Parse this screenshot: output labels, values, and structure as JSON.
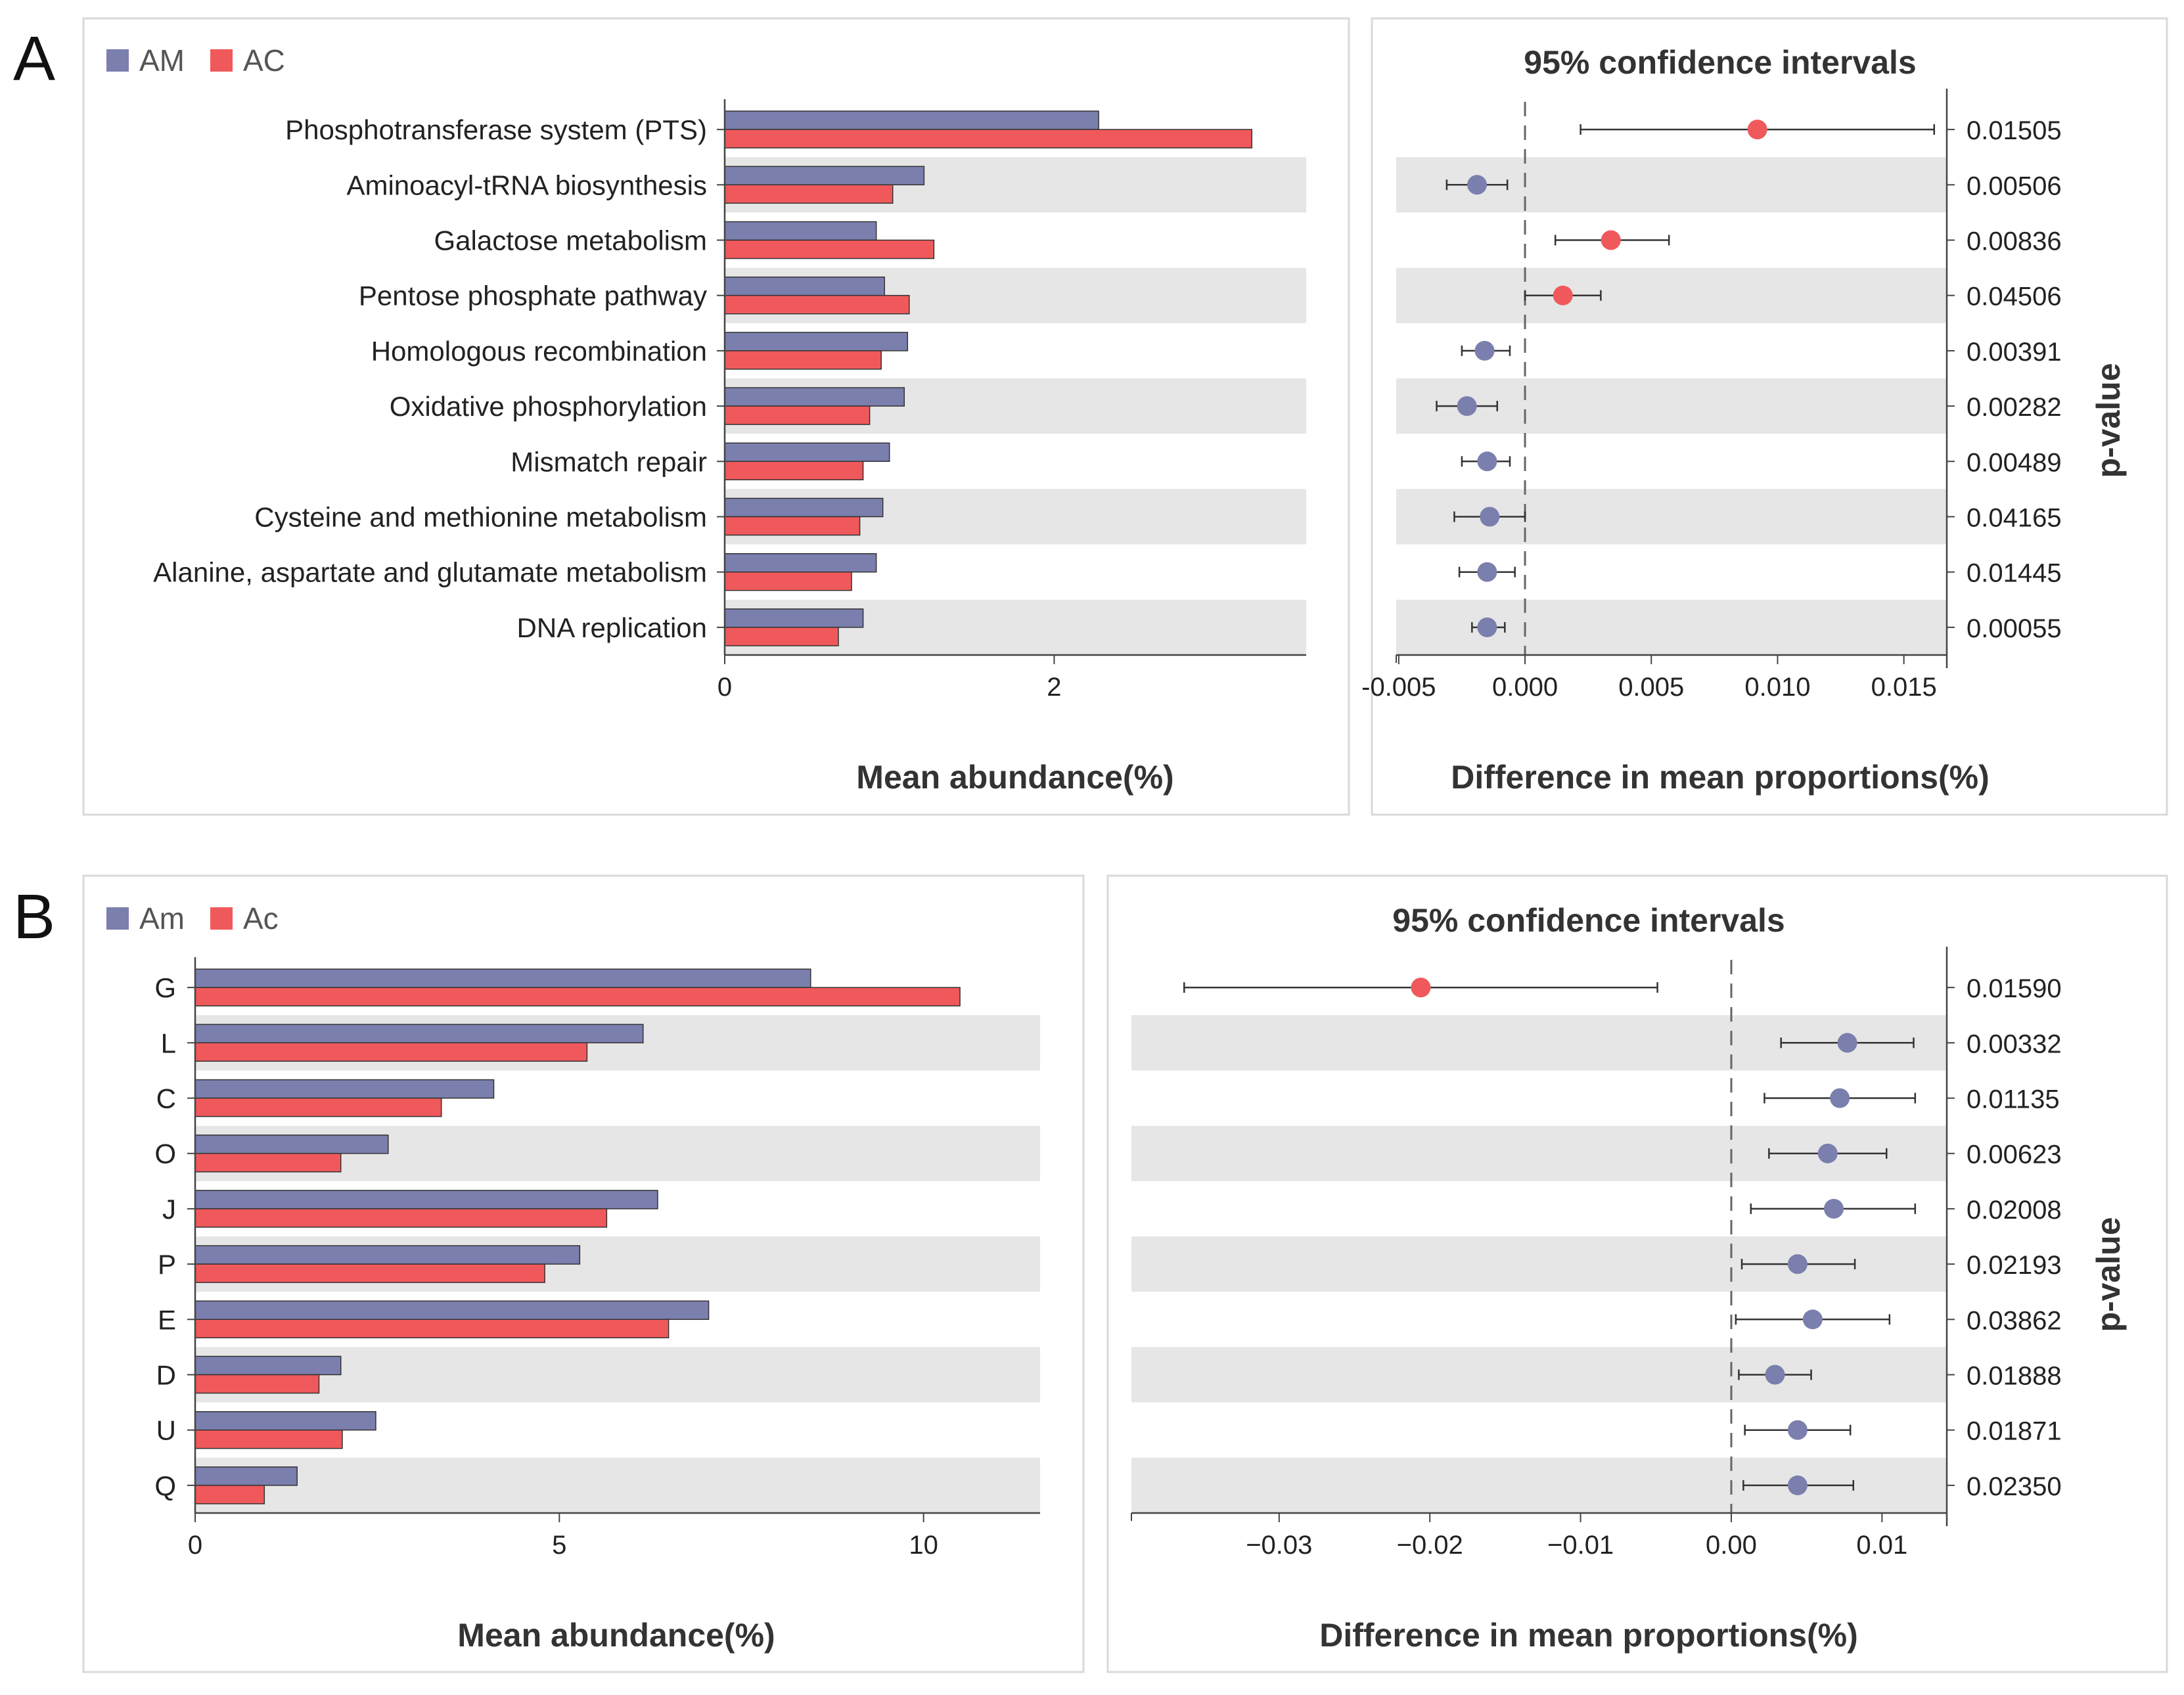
{
  "colors": {
    "series_a": "#7b7fad",
    "series_b": "#f0595b",
    "band": "#e6e6e6",
    "frame": "#d9d9d9",
    "axis": "#444444",
    "text": "#222222"
  },
  "chart_data": [
    {
      "type": "bar",
      "panel_label": "A",
      "title": "",
      "legend_position": "top-left",
      "legend": [
        "AM",
        "AC"
      ],
      "categories": [
        "Phosphotransferase system (PTS)",
        "Aminoacyl-tRNA biosynthesis",
        "Galactose metabolism",
        "Pentose phosphate pathway",
        "Homologous recombination",
        "Oxidative phosphorylation",
        "Mismatch repair",
        "Cysteine and methionine metabolism",
        "Alanine, aspartate and glutamate metabolism",
        "DNA replication"
      ],
      "series": [
        {
          "name": "AM",
          "values": [
            2.27,
            1.21,
            0.92,
            0.97,
            1.11,
            1.09,
            1.0,
            0.96,
            0.92,
            0.84
          ]
        },
        {
          "name": "AC",
          "values": [
            3.2,
            1.02,
            1.27,
            1.12,
            0.95,
            0.88,
            0.84,
            0.82,
            0.77,
            0.69
          ]
        }
      ],
      "xlabel": "Mean abundance(%)",
      "xlim": [
        0,
        3.53
      ],
      "xticks": [
        0,
        2
      ],
      "xtick_labels": [
        "0",
        "2"
      ]
    },
    {
      "type": "scatter",
      "panel_label": "A",
      "title": "95% confidence intervals",
      "xlabel": "Difference in mean proportions(%)",
      "ylabel": "p-value",
      "xlim": [
        -0.0051,
        0.0167
      ],
      "xticks": [
        -0.005,
        0.0,
        0.005,
        0.01,
        0.015
      ],
      "xtick_labels": [
        "-0.005",
        "0.000",
        "0.005",
        "0.010",
        "0.015"
      ],
      "points": [
        {
          "estimate": 0.0092,
          "low": 0.0022,
          "high": 0.0162,
          "group": "AC",
          "p_value": "0.01505"
        },
        {
          "estimate": -0.0019,
          "low": -0.0031,
          "high": -0.0007,
          "group": "AM",
          "p_value": "0.00506"
        },
        {
          "estimate": 0.0034,
          "low": 0.0012,
          "high": 0.0057,
          "group": "AC",
          "p_value": "0.00836"
        },
        {
          "estimate": 0.0015,
          "low": 0.0,
          "high": 0.003,
          "group": "AC",
          "p_value": "0.04506"
        },
        {
          "estimate": -0.0016,
          "low": -0.0025,
          "high": -0.0006,
          "group": "AM",
          "p_value": "0.00391"
        },
        {
          "estimate": -0.0023,
          "low": -0.0035,
          "high": -0.0011,
          "group": "AM",
          "p_value": "0.00282"
        },
        {
          "estimate": -0.0015,
          "low": -0.0025,
          "high": -0.0006,
          "group": "AM",
          "p_value": "0.00489"
        },
        {
          "estimate": -0.0014,
          "low": -0.0028,
          "high": 0.0,
          "group": "AM",
          "p_value": "0.04165"
        },
        {
          "estimate": -0.0015,
          "low": -0.0026,
          "high": -0.0004,
          "group": "AM",
          "p_value": "0.01445"
        },
        {
          "estimate": -0.0015,
          "low": -0.0021,
          "high": -0.0008,
          "group": "AM",
          "p_value": "0.00055"
        }
      ]
    },
    {
      "type": "bar",
      "panel_label": "B",
      "title": "",
      "legend_position": "top-left",
      "legend": [
        "Am",
        "Ac"
      ],
      "categories": [
        "G",
        "L",
        "C",
        "O",
        "J",
        "P",
        "E",
        "D",
        "U",
        "Q"
      ],
      "series": [
        {
          "name": "Am",
          "values": [
            8.45,
            6.15,
            4.1,
            2.65,
            6.35,
            5.28,
            7.05,
            2.0,
            2.48,
            1.4
          ]
        },
        {
          "name": "Ac",
          "values": [
            10.5,
            5.38,
            3.38,
            2.0,
            5.65,
            4.8,
            6.5,
            1.7,
            2.02,
            0.95
          ]
        }
      ],
      "xlabel": "Mean abundance(%)",
      "xlim": [
        0,
        11.6
      ],
      "xticks": [
        0,
        5,
        10
      ],
      "xtick_labels": [
        "0",
        "5",
        "10"
      ]
    },
    {
      "type": "scatter",
      "panel_label": "B",
      "title": "95% confidence intervals",
      "xlabel": "Difference in mean proportions(%)",
      "ylabel": "p-value",
      "xlim": [
        -0.0398,
        0.0143
      ],
      "xticks": [
        -0.03,
        -0.02,
        -0.01,
        0.0,
        0.01
      ],
      "xtick_labels": [
        "−0.03",
        "−0.02",
        "−0.01",
        "0.00",
        "0.01"
      ],
      "points": [
        {
          "estimate": -0.0206,
          "low": -0.0363,
          "high": -0.0049,
          "group": "Ac",
          "p_value": "0.01590"
        },
        {
          "estimate": 0.0077,
          "low": 0.0033,
          "high": 0.0121,
          "group": "Am",
          "p_value": "0.00332"
        },
        {
          "estimate": 0.0072,
          "low": 0.0022,
          "high": 0.0122,
          "group": "Am",
          "p_value": "0.01135"
        },
        {
          "estimate": 0.0064,
          "low": 0.0025,
          "high": 0.0103,
          "group": "Am",
          "p_value": "0.00623"
        },
        {
          "estimate": 0.0068,
          "low": 0.0013,
          "high": 0.0122,
          "group": "Am",
          "p_value": "0.02008"
        },
        {
          "estimate": 0.0044,
          "low": 0.0007,
          "high": 0.0082,
          "group": "Am",
          "p_value": "0.02193"
        },
        {
          "estimate": 0.0054,
          "low": 0.0003,
          "high": 0.0105,
          "group": "Am",
          "p_value": "0.03862"
        },
        {
          "estimate": 0.0029,
          "low": 0.0005,
          "high": 0.0053,
          "group": "Am",
          "p_value": "0.01888"
        },
        {
          "estimate": 0.0044,
          "low": 0.0009,
          "high": 0.0079,
          "group": "Am",
          "p_value": "0.01871"
        },
        {
          "estimate": 0.0044,
          "low": 0.0008,
          "high": 0.0081,
          "group": "Am",
          "p_value": "0.02350"
        }
      ]
    }
  ]
}
